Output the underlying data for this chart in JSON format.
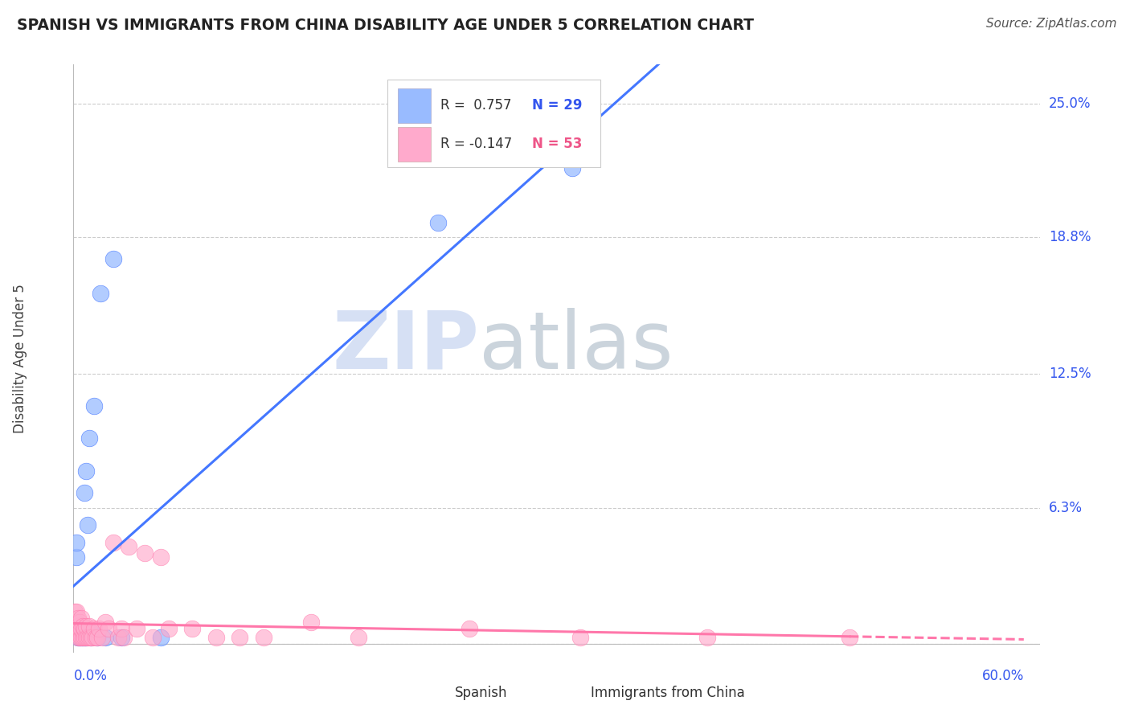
{
  "title": "SPANISH VS IMMIGRANTS FROM CHINA DISABILITY AGE UNDER 5 CORRELATION CHART",
  "source": "Source: ZipAtlas.com",
  "ylabel": "Disability Age Under 5",
  "yticks": [
    0.0,
    0.063,
    0.125,
    0.188,
    0.25
  ],
  "ytick_labels": [
    "",
    "6.3%",
    "12.5%",
    "18.8%",
    "25.0%"
  ],
  "xlim": [
    0.0,
    0.61
  ],
  "ylim": [
    -0.004,
    0.268
  ],
  "legend_r1": "R =  0.757",
  "legend_n1": "N = 29",
  "legend_r2": "R = -0.147",
  "legend_n2": "N = 53",
  "color_blue": "#99BBFF",
  "color_pink": "#FFAACC",
  "color_blue_line": "#4477FF",
  "color_pink_line": "#FF77AA",
  "color_blue_text": "#3355EE",
  "color_pink_text": "#EE5588",
  "watermark_zip": "ZIP",
  "watermark_atlas": "atlas",
  "watermark_color_zip": "#BBCCEE",
  "watermark_color_atlas": "#99AABB",
  "spanish_x": [
    0.001,
    0.002,
    0.002,
    0.003,
    0.003,
    0.004,
    0.004,
    0.005,
    0.005,
    0.006,
    0.006,
    0.007,
    0.007,
    0.008,
    0.008,
    0.009,
    0.01,
    0.01,
    0.011,
    0.012,
    0.013,
    0.015,
    0.017,
    0.02,
    0.025,
    0.03,
    0.055,
    0.23,
    0.315
  ],
  "spanish_y": [
    0.01,
    0.04,
    0.047,
    0.003,
    0.005,
    0.003,
    0.005,
    0.003,
    0.005,
    0.003,
    0.005,
    0.003,
    0.07,
    0.003,
    0.08,
    0.055,
    0.095,
    0.005,
    0.003,
    0.005,
    0.11,
    0.003,
    0.162,
    0.003,
    0.178,
    0.003,
    0.003,
    0.195,
    0.22
  ],
  "china_x": [
    0.001,
    0.001,
    0.002,
    0.002,
    0.002,
    0.003,
    0.003,
    0.003,
    0.003,
    0.004,
    0.004,
    0.004,
    0.005,
    0.005,
    0.005,
    0.006,
    0.006,
    0.007,
    0.007,
    0.008,
    0.008,
    0.009,
    0.01,
    0.01,
    0.011,
    0.012,
    0.013,
    0.014,
    0.015,
    0.016,
    0.018,
    0.02,
    0.022,
    0.025,
    0.028,
    0.03,
    0.032,
    0.035,
    0.04,
    0.045,
    0.05,
    0.055,
    0.06,
    0.075,
    0.09,
    0.105,
    0.12,
    0.15,
    0.18,
    0.25,
    0.32,
    0.4,
    0.49
  ],
  "china_y": [
    0.01,
    0.015,
    0.005,
    0.01,
    0.015,
    0.003,
    0.005,
    0.008,
    0.012,
    0.003,
    0.007,
    0.01,
    0.003,
    0.007,
    0.012,
    0.003,
    0.008,
    0.003,
    0.007,
    0.003,
    0.008,
    0.003,
    0.003,
    0.008,
    0.003,
    0.003,
    0.007,
    0.003,
    0.003,
    0.007,
    0.003,
    0.01,
    0.007,
    0.047,
    0.003,
    0.007,
    0.003,
    0.045,
    0.007,
    0.042,
    0.003,
    0.04,
    0.007,
    0.007,
    0.003,
    0.003,
    0.003,
    0.01,
    0.003,
    0.007,
    0.003,
    0.003,
    0.003
  ]
}
